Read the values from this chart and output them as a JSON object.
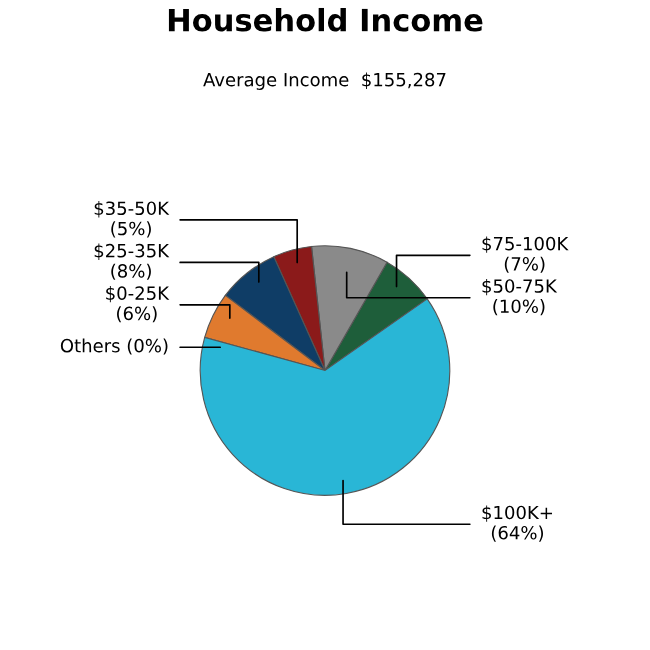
{
  "chart_data": {
    "type": "pie",
    "title": "Household Income",
    "subtitle": "Average Income  $155,287",
    "categories": [
      "$75-100K",
      "$50-75K",
      "$35-50K",
      "$25-35K",
      "$0-25K",
      "Others",
      "$100K+"
    ],
    "values": [
      7,
      10,
      5,
      8,
      6,
      0,
      64
    ],
    "value_labels": [
      "(7%)",
      "(10%)",
      "(5%)",
      "(8%)",
      "(6%)",
      "(0%)",
      "(64%)"
    ],
    "colors": [
      "#1e5e3a",
      "#8a8a8a",
      "#8b1a1a",
      "#0f3d66",
      "#e07a2e",
      "#c8c8c8",
      "#29b6d6"
    ]
  }
}
